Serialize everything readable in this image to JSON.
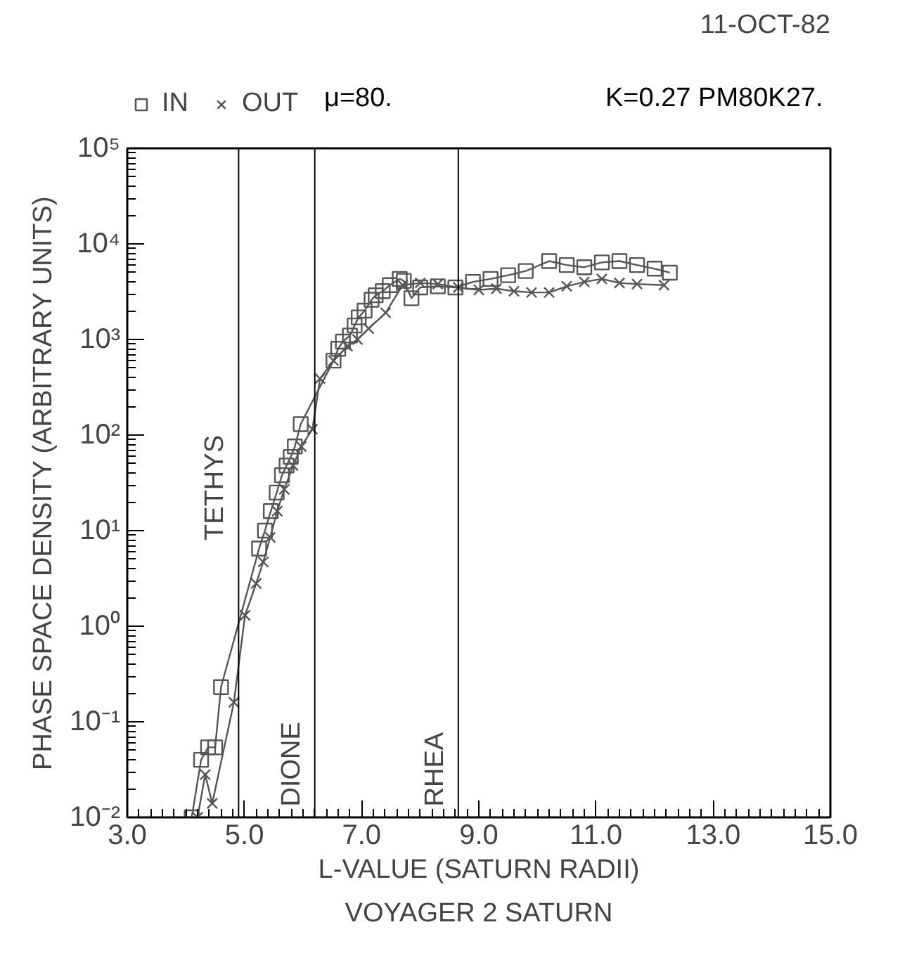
{
  "chart_data": {
    "type": "line",
    "title": "11-OCT-82",
    "xlabel": "L-VALUE (SATURN RADII)",
    "ylabel": "PHASE SPACE DENSITY (ARBITRARY UNITS)",
    "annotations": [
      "μ=80.",
      "K=0.27  PM80K27.",
      "VOYAGER 2 SATURN"
    ],
    "log": "y",
    "xlim": [
      3.0,
      15.0
    ],
    "ylim": [
      0.01,
      100000
    ],
    "xticks": [
      {
        "value": 3,
        "label": "3.0"
      },
      {
        "value": 5,
        "label": "5.0"
      },
      {
        "value": 7,
        "label": "7.0"
      },
      {
        "value": 9,
        "label": "9.0"
      },
      {
        "value": 11,
        "label": "11.0"
      },
      {
        "value": 13,
        "label": "13.0"
      },
      {
        "value": 15,
        "label": "15.0"
      }
    ],
    "yticks": [
      {
        "value": 0.01,
        "label": "10⁻²"
      },
      {
        "value": 0.1,
        "label": "10⁻¹"
      },
      {
        "value": 1,
        "label": "10⁰"
      },
      {
        "value": 10,
        "label": "10¹"
      },
      {
        "value": 100,
        "label": "10²"
      },
      {
        "value": 1000,
        "label": "10³"
      },
      {
        "value": 10000,
        "label": "10⁴"
      },
      {
        "value": 100000,
        "label": "10⁵"
      }
    ],
    "grid": false,
    "legend": "top left",
    "ref_lines": [
      {
        "axis": "x",
        "value": 4.9,
        "label": "TETHYS",
        "color": "#000000"
      },
      {
        "axis": "x",
        "value": 6.2,
        "label": "DIONE",
        "color": "#000000"
      },
      {
        "axis": "x",
        "value": 8.65,
        "label": "RHEA",
        "color": "#000000"
      }
    ],
    "series": [
      {
        "name": "IN",
        "color": "#555555",
        "marker": "square",
        "x": [
          4.1,
          4.26,
          4.38,
          4.5,
          4.6,
          5.25,
          5.35,
          5.45,
          5.55,
          5.64,
          5.72,
          5.79,
          5.86,
          5.96,
          6.52,
          6.6,
          6.68,
          6.8,
          6.88,
          6.95,
          7.05,
          7.17,
          7.24,
          7.36,
          7.48,
          7.65,
          7.72,
          7.85,
          8.0,
          8.3,
          8.6,
          8.9,
          9.2,
          9.5,
          9.8,
          10.2,
          10.5,
          10.8,
          11.1,
          11.4,
          11.7,
          12.0,
          12.26
        ],
        "values": [
          0.01,
          0.04,
          0.054,
          0.054,
          0.23,
          6.5,
          10,
          16,
          25,
          38,
          48,
          59,
          76,
          130,
          600,
          800,
          950,
          1100,
          1400,
          1700,
          2000,
          2600,
          2900,
          3200,
          3700,
          4300,
          4100,
          2700,
          3500,
          3600,
          3500,
          4000,
          4300,
          4700,
          5200,
          6600,
          6000,
          5700,
          6400,
          6600,
          6000,
          5500,
          5000
        ]
      },
      {
        "name": "OUT",
        "color": "#555555",
        "marker": "cross",
        "x": [
          4.2,
          4.33,
          4.45,
          4.82,
          5.01,
          5.2,
          5.32,
          5.44,
          5.56,
          5.68,
          5.83,
          5.97,
          6.16,
          6.29,
          6.52,
          6.76,
          6.93,
          7.12,
          7.41,
          7.7,
          8.0,
          8.3,
          8.65,
          9.0,
          9.3,
          9.6,
          9.9,
          10.2,
          10.5,
          10.8,
          11.1,
          11.4,
          11.7,
          12.16
        ],
        "values": [
          0.01,
          0.028,
          0.014,
          0.16,
          1.3,
          2.8,
          4.7,
          8.5,
          16,
          27,
          48,
          76,
          115,
          390,
          600,
          850,
          1000,
          1300,
          1900,
          3700,
          3900,
          3800,
          3500,
          3300,
          3400,
          3200,
          3100,
          3100,
          3600,
          4000,
          4300,
          3900,
          3800,
          3700
        ]
      }
    ]
  }
}
